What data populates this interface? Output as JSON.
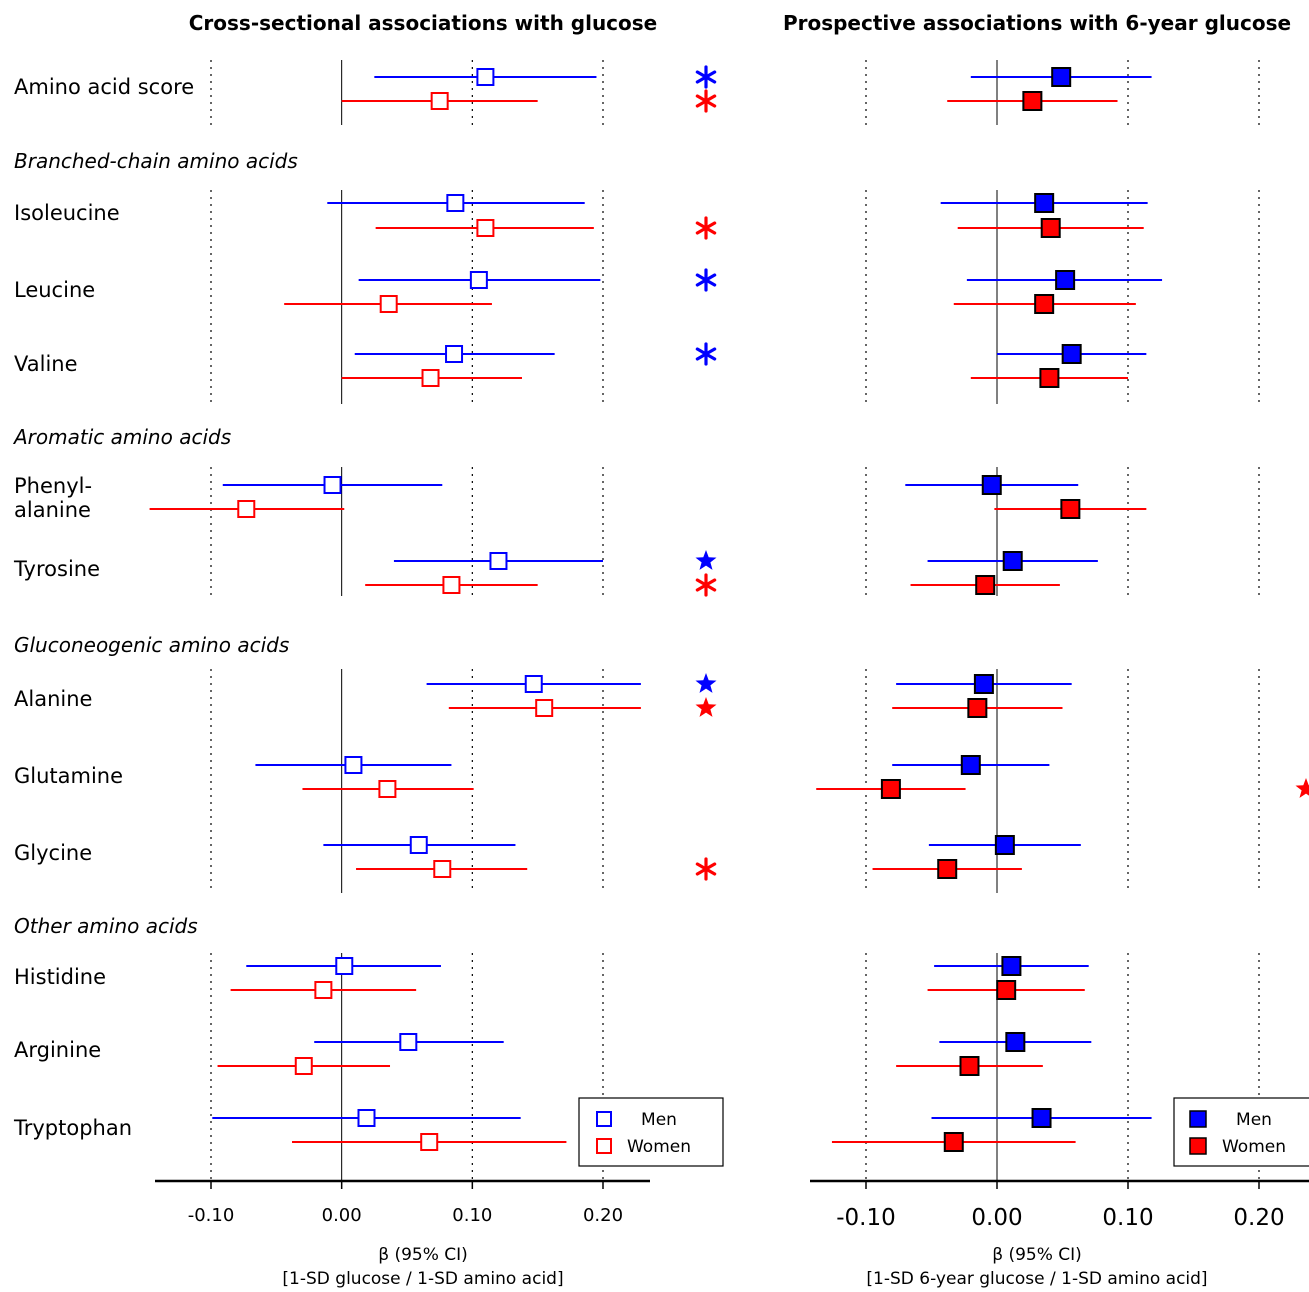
{
  "chart_data": {
    "type": "forest",
    "panels": [
      {
        "id": "cross",
        "title": "Cross-sectional associations with glucose",
        "xlabel_line1": "β (95% CI)",
        "xlabel_line2": "[1-SD glucose / 1-SD amino acid]",
        "ticks": [
          "-0.10",
          "0.00",
          "0.10",
          "0.20"
        ],
        "tick_values": [
          -0.1,
          0.0,
          0.1,
          0.2
        ],
        "xlim": [
          -0.141,
          0.236
        ],
        "marker": "open-square"
      },
      {
        "id": "prosp",
        "title": "Prospective associations with 6-year glucose",
        "xlabel_line1": "β (95% CI)",
        "xlabel_line2": "[1-SD 6-year glucose / 1-SD amino acid]",
        "ticks": [
          "-0.10",
          "0.00",
          "0.10",
          "0.20"
        ],
        "tick_values": [
          -0.1,
          0.0,
          0.1,
          0.2
        ],
        "xlim": [
          -0.138,
          0.235
        ],
        "marker": "filled-square"
      }
    ],
    "groups": [
      {
        "label": "",
        "rows": [
          "amino"
        ]
      },
      {
        "label": "Branched-chain amino acids",
        "rows": [
          "ile",
          "leu",
          "val"
        ]
      },
      {
        "label": "Aromatic amino acids",
        "rows": [
          "phe",
          "tyr"
        ]
      },
      {
        "label": "Gluconeogenic amino acids",
        "rows": [
          "ala",
          "gln",
          "gly"
        ]
      },
      {
        "label": "Other amino acids",
        "rows": [
          "his",
          "arg",
          "trp"
        ]
      }
    ],
    "rows": [
      {
        "id": "amino",
        "label": [
          "Amino acid score"
        ],
        "cross": {
          "men": [
            0.11,
            0.025,
            0.195
          ],
          "women": [
            0.075,
            0.0,
            0.15
          ]
        },
        "prosp": {
          "men": [
            0.049,
            -0.02,
            0.118
          ],
          "women": [
            0.027,
            -0.038,
            0.092
          ]
        },
        "cross_sig": {
          "men": "asterisk",
          "women": "asterisk"
        }
      },
      {
        "id": "ile",
        "label": [
          "Isoleucine"
        ],
        "cross": {
          "men": [
            0.087,
            -0.011,
            0.186
          ],
          "women": [
            0.11,
            0.026,
            0.193
          ]
        },
        "prosp": {
          "men": [
            0.036,
            -0.043,
            0.115
          ],
          "women": [
            0.041,
            -0.03,
            0.112
          ]
        },
        "cross_sig": {
          "women": "asterisk"
        }
      },
      {
        "id": "leu",
        "label": [
          "Leucine"
        ],
        "cross": {
          "men": [
            0.105,
            0.013,
            0.198
          ],
          "women": [
            0.036,
            -0.044,
            0.115
          ]
        },
        "prosp": {
          "men": [
            0.052,
            -0.023,
            0.126
          ],
          "women": [
            0.036,
            -0.033,
            0.106
          ]
        },
        "cross_sig": {
          "men": "asterisk"
        }
      },
      {
        "id": "val",
        "label": [
          "Valine"
        ],
        "cross": {
          "men": [
            0.086,
            0.01,
            0.163
          ],
          "women": [
            0.068,
            0.0,
            0.138
          ]
        },
        "prosp": {
          "men": [
            0.057,
            0.0,
            0.114
          ],
          "women": [
            0.04,
            -0.02,
            0.1
          ]
        },
        "cross_sig": {
          "men": "asterisk"
        }
      },
      {
        "id": "phe",
        "label": [
          "Phenyl-",
          "alanine"
        ],
        "cross": {
          "men": [
            -0.007,
            -0.091,
            0.077
          ],
          "women": [
            -0.073,
            -0.147,
            0.002
          ]
        },
        "prosp": {
          "men": [
            -0.004,
            -0.07,
            0.062
          ],
          "women": [
            0.056,
            -0.002,
            0.114
          ]
        }
      },
      {
        "id": "tyr",
        "label": [
          "Tyrosine"
        ],
        "cross": {
          "men": [
            0.12,
            0.04,
            0.2
          ],
          "women": [
            0.084,
            0.018,
            0.15
          ]
        },
        "prosp": {
          "men": [
            0.012,
            -0.053,
            0.077
          ],
          "women": [
            -0.009,
            -0.066,
            0.048
          ]
        },
        "cross_sig": {
          "men": "star",
          "women": "asterisk"
        }
      },
      {
        "id": "ala",
        "label": [
          "Alanine"
        ],
        "cross": {
          "men": [
            0.147,
            0.065,
            0.229
          ],
          "women": [
            0.155,
            0.082,
            0.229
          ]
        },
        "prosp": {
          "men": [
            -0.01,
            -0.077,
            0.057
          ],
          "women": [
            -0.015,
            -0.08,
            0.05
          ]
        },
        "cross_sig": {
          "men": "star",
          "women": "star"
        }
      },
      {
        "id": "gln",
        "label": [
          "Glutamine"
        ],
        "cross": {
          "men": [
            0.009,
            -0.066,
            0.084
          ],
          "women": [
            0.035,
            -0.03,
            0.101
          ]
        },
        "prosp": {
          "men": [
            -0.02,
            -0.08,
            0.04
          ],
          "women": [
            -0.081,
            -0.138,
            -0.024
          ]
        },
        "prosp_sig": {
          "women": "star"
        }
      },
      {
        "id": "gly",
        "label": [
          "Glycine"
        ],
        "cross": {
          "men": [
            0.059,
            -0.014,
            0.133
          ],
          "women": [
            0.077,
            0.011,
            0.142
          ]
        },
        "prosp": {
          "men": [
            0.006,
            -0.052,
            0.064
          ],
          "women": [
            -0.038,
            -0.095,
            0.019
          ]
        },
        "cross_sig": {
          "women": "asterisk"
        }
      },
      {
        "id": "his",
        "label": [
          "Histidine"
        ],
        "cross": {
          "men": [
            0.002,
            -0.073,
            0.076
          ],
          "women": [
            -0.014,
            -0.085,
            0.057
          ]
        },
        "prosp": {
          "men": [
            0.011,
            -0.048,
            0.07
          ],
          "women": [
            0.007,
            -0.053,
            0.067
          ]
        }
      },
      {
        "id": "arg",
        "label": [
          "Arginine"
        ],
        "cross": {
          "men": [
            0.051,
            -0.021,
            0.124
          ],
          "women": [
            -0.029,
            -0.095,
            0.037
          ]
        },
        "prosp": {
          "men": [
            0.014,
            -0.044,
            0.072
          ],
          "women": [
            -0.021,
            -0.077,
            0.035
          ]
        }
      },
      {
        "id": "trp",
        "label": [
          "Tryptophan"
        ],
        "cross": {
          "men": [
            0.019,
            -0.099,
            0.137
          ],
          "women": [
            0.067,
            -0.038,
            0.172
          ]
        },
        "prosp": {
          "men": [
            0.034,
            -0.05,
            0.118
          ],
          "women": [
            -0.033,
            -0.126,
            0.06
          ]
        }
      }
    ],
    "series": [
      {
        "key": "men",
        "name": "Men",
        "color": "#0000ff",
        "marker_fill": "#0000ff"
      },
      {
        "key": "women",
        "name": "Women",
        "color": "#ff0000",
        "marker_fill": "#ff0000"
      }
    ],
    "legend_position": "bottom-right",
    "grid": "dotted vertical lines at ±0.10 and 0.20"
  }
}
